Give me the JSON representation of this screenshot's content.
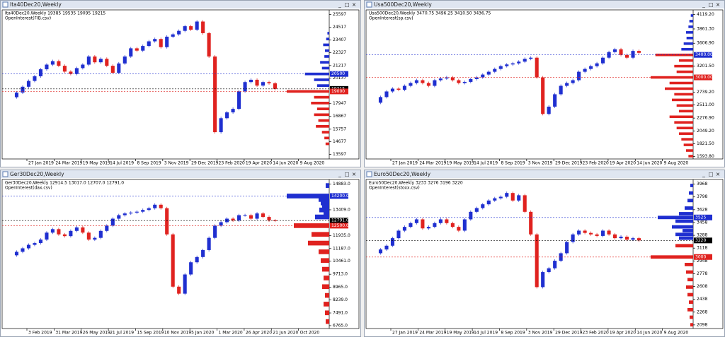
{
  "windows": [
    {
      "title": "Ita40Dec20,Weekly",
      "info": "Ita40Dec20,Weekly  19385 19535 19095 19215",
      "indicator": "OpenInterest(FIB.csv)",
      "ylim": [
        13200,
        26000
      ],
      "yticks": [
        "25597",
        "24517",
        "23407",
        "22327",
        "21217",
        "20137",
        "17947",
        "16867",
        "15757",
        "14677",
        "13597"
      ],
      "levels": [
        {
          "label": "20500",
          "color": "#1f2fd0"
        },
        {
          "label": "19215",
          "color": "#000000"
        },
        {
          "label": "19000",
          "color": "#e0221f"
        }
      ],
      "dates": [
        "27 Jan 2019",
        "24 Mar 2019",
        "19 May 2019",
        "14 Jul 2019",
        "8 Sep 2019",
        "3 Nov 2019",
        "29 Dec 2019",
        "23 Feb 2020",
        "19 Apr 2020",
        "14 Jun 2020",
        "9 Aug 2020"
      ],
      "closes": [
        18500,
        18900,
        19400,
        19900,
        20300,
        20900,
        21300,
        21600,
        21200,
        20700,
        20500,
        21000,
        21300,
        22000,
        21500,
        21800,
        21200,
        20600,
        21400,
        22000,
        22700,
        22500,
        22900,
        23300,
        23500,
        22800,
        23700,
        23900,
        24200,
        24600,
        24300,
        25000,
        24000,
        22000,
        15500,
        16700,
        17200,
        17500,
        19000,
        19800,
        20000,
        19500,
        19800,
        19700,
        19215
      ],
      "profile": [
        [
          24000,
          3
        ],
        [
          23500,
          5
        ],
        [
          23000,
          10
        ],
        [
          22500,
          7
        ],
        [
          22000,
          8
        ],
        [
          21500,
          15
        ],
        [
          21000,
          12
        ],
        [
          20500,
          40
        ],
        [
          20000,
          25
        ],
        [
          19500,
          20
        ],
        [
          19000,
          70
        ],
        [
          18500,
          25
        ],
        [
          18000,
          30
        ],
        [
          17500,
          20
        ],
        [
          17000,
          25
        ],
        [
          16500,
          18
        ],
        [
          16000,
          22
        ],
        [
          15500,
          12
        ],
        [
          15000,
          8
        ],
        [
          14500,
          6
        ]
      ]
    },
    {
      "title": "Usa500Dec20,Weekly",
      "info": "Usa500Dec20,Weekly  3470.75 3496.25 3410.50 3436.75",
      "indicator": "OpenInterest(sp.csv)",
      "ylim": [
        1550,
        4200
      ],
      "yticks": [
        "4119.20",
        "3861.30",
        "3606.90",
        "3201.50",
        "2739.20",
        "2511.00",
        "2276.90",
        "2049.20",
        "1821.50",
        "1593.80"
      ],
      "levels": [
        {
          "label": "3400.00",
          "color": "#1f2fd0"
        },
        {
          "label": "3000.00",
          "color": "#e0221f"
        }
      ],
      "dates": [
        "27 Jan 2019",
        "24 Mar 2019",
        "19 May 2019",
        "14 Jul 2019",
        "8 Sep 2019",
        "3 Nov 2019",
        "29 Dec 2019",
        "23 Feb 2020",
        "19 Apr 2020",
        "14 Jun 2020",
        "9 Aug 2020"
      ],
      "closes": [
        2550,
        2650,
        2750,
        2800,
        2780,
        2850,
        2900,
        2950,
        2900,
        2850,
        2950,
        2980,
        3000,
        2950,
        2900,
        2920,
        2970,
        3000,
        3050,
        3100,
        3150,
        3200,
        3230,
        3250,
        3280,
        3330,
        3350,
        3000,
        2350,
        2480,
        2700,
        2850,
        2900,
        2950,
        3100,
        3150,
        3200,
        3250,
        3350,
        3450,
        3500,
        3400,
        3350,
        3470,
        3436.75
      ],
      "profile": [
        [
          4100,
          5
        ],
        [
          4000,
          8
        ],
        [
          3900,
          10
        ],
        [
          3800,
          15
        ],
        [
          3700,
          14
        ],
        [
          3600,
          20
        ],
        [
          3500,
          25
        ],
        [
          3400,
          80
        ],
        [
          3300,
          30
        ],
        [
          3200,
          40
        ],
        [
          3100,
          35
        ],
        [
          3000,
          90
        ],
        [
          2900,
          50
        ],
        [
          2800,
          60
        ],
        [
          2700,
          40
        ],
        [
          2600,
          45
        ],
        [
          2500,
          35
        ],
        [
          2400,
          30
        ],
        [
          2300,
          50
        ],
        [
          2200,
          40
        ],
        [
          2100,
          35
        ],
        [
          2000,
          30
        ],
        [
          1900,
          25
        ],
        [
          1800,
          20
        ],
        [
          1700,
          15
        ],
        [
          1600,
          10
        ]
      ]
    },
    {
      "title": "Ger30Dec20,Weekly",
      "info": "Ger30Dec20,Weekly  12914.5 13017.0 12707.0 12791.0",
      "indicator": "OpenInterest(dax.csv)",
      "ylim": [
        6600,
        15150
      ],
      "yticks": [
        "14883.0",
        "13409.0",
        "11935.0",
        "11187.0",
        "10461.0",
        "9713.0",
        "8965.0",
        "8239.0",
        "7491.0",
        "6765.0"
      ],
      "levels": [
        {
          "label": "14200.0",
          "color": "#1f2fd0"
        },
        {
          "label": "12791.0",
          "color": "#000000"
        },
        {
          "label": "12500.0",
          "color": "#e0221f"
        }
      ],
      "dates": [
        "3 Feb 2019",
        "31 Mar 2019",
        "26 May 2019",
        "21 Jul 2019",
        "15 Sep 2019",
        "10 Nov 2019",
        "5 Jan 2020",
        "1 Mar 2020",
        "26 Apr 2020",
        "21 Jun 2020",
        "Oct 2020"
      ],
      "closes": [
        10800,
        11000,
        11200,
        11400,
        11500,
        11700,
        12100,
        12300,
        12000,
        11900,
        12200,
        12400,
        12100,
        11700,
        11800,
        12200,
        12500,
        12900,
        13100,
        13200,
        13250,
        13300,
        13400,
        13500,
        13700,
        13500,
        12000,
        9000,
        8600,
        9700,
        10400,
        10700,
        11100,
        11800,
        12500,
        12700,
        12900,
        12800,
        13100,
        13100,
        12900,
        13200,
        13000,
        12800,
        12791
      ],
      "profile": [
        [
          14800,
          5
        ],
        [
          14200,
          60
        ],
        [
          14000,
          15
        ],
        [
          13800,
          12
        ],
        [
          13600,
          10
        ],
        [
          13400,
          14
        ],
        [
          13200,
          8
        ],
        [
          13000,
          20
        ],
        [
          12500,
          50
        ],
        [
          12000,
          25
        ],
        [
          11500,
          30
        ],
        [
          11000,
          15
        ],
        [
          10500,
          12
        ],
        [
          10000,
          10
        ],
        [
          9500,
          8
        ],
        [
          9000,
          10
        ],
        [
          8500,
          6
        ],
        [
          8000,
          8
        ],
        [
          7500,
          6
        ],
        [
          7000,
          5
        ]
      ]
    },
    {
      "title": "Euro50Dec20,Weekly",
      "info": "Euro50Dec20,Weekly  3233 3276 3196 3220",
      "indicator": "OpenInterest(stoxx.csv)",
      "ylim": [
        2050,
        4030
      ],
      "yticks": [
        "3968",
        "3798",
        "3628",
        "3458",
        "3288",
        "3118",
        "2948",
        "2778",
        "2608",
        "2438",
        "2268",
        "2098"
      ],
      "levels": [
        {
          "label": "3525",
          "color": "#1f2fd0"
        },
        {
          "label": "3220",
          "color": "#000000"
        },
        {
          "label": "3000",
          "color": "#e0221f"
        }
      ],
      "dates": [
        "27 Jan 2019",
        "24 Mar 2019",
        "19 May 2019",
        "14 Jul 2019",
        "8 Sep 2019",
        "3 Nov 2019",
        "29 Dec 2019",
        "23 Feb 2020",
        "19 Apr 2020",
        "14 Jun 2020",
        "9 Aug 2020"
      ],
      "closes": [
        3050,
        3100,
        3150,
        3250,
        3350,
        3400,
        3450,
        3500,
        3380,
        3400,
        3450,
        3500,
        3450,
        3400,
        3350,
        3500,
        3600,
        3650,
        3700,
        3750,
        3780,
        3800,
        3850,
        3750,
        3820,
        3600,
        3300,
        2600,
        2800,
        2850,
        2950,
        3050,
        3200,
        3300,
        3350,
        3320,
        3300,
        3280,
        3350,
        3300,
        3250,
        3270,
        3230,
        3250,
        3220
      ],
      "profile": [
        [
          3950,
          4
        ],
        [
          3850,
          6
        ],
        [
          3750,
          8
        ],
        [
          3650,
          12
        ],
        [
          3575,
          20
        ],
        [
          3525,
          50
        ],
        [
          3475,
          25
        ],
        [
          3400,
          30
        ],
        [
          3350,
          15
        ],
        [
          3300,
          25
        ],
        [
          3250,
          20
        ],
        [
          3150,
          25
        ],
        [
          3000,
          60
        ],
        [
          2900,
          12
        ],
        [
          2800,
          10
        ],
        [
          2700,
          8
        ],
        [
          2600,
          10
        ],
        [
          2500,
          8
        ],
        [
          2400,
          6
        ],
        [
          2300,
          8
        ],
        [
          2200,
          5
        ],
        [
          2100,
          4
        ]
      ]
    }
  ]
}
